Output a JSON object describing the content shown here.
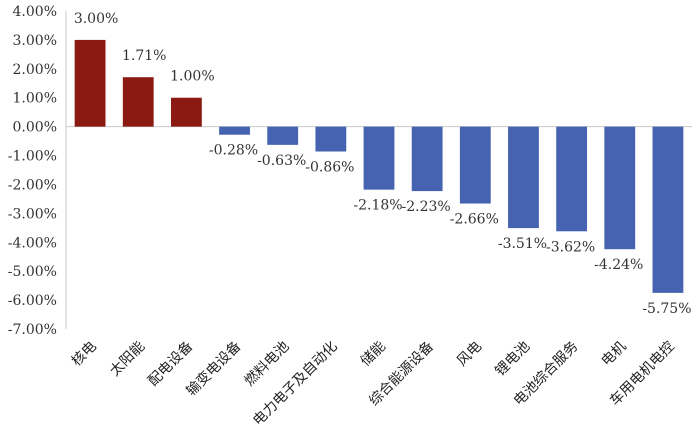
{
  "chart_data": {
    "type": "bar",
    "title": "",
    "xlabel": "",
    "ylabel": "",
    "ylim": [
      -7.0,
      4.0
    ],
    "y_tick_step": 1.0,
    "y_tick_labels": [
      "4.00%",
      "3.00%",
      "2.00%",
      "1.00%",
      "0.00%",
      "-1.00%",
      "-2.00%",
      "-3.00%",
      "-4.00%",
      "-5.00%",
      "-6.00%",
      "-7.00%"
    ],
    "grid": false,
    "legend": "none",
    "colors": {
      "positive": "#8B1A12",
      "negative": "#4563B1",
      "axis": "#C8C8C8"
    },
    "categories": [
      "核电",
      "太阳能",
      "配电设备",
      "输变电设备",
      "燃料电池",
      "电力电子及自动化",
      "储能",
      "综合能源设备",
      "风电",
      "锂电池",
      "电池综合服务",
      "电机",
      "车用电机电控"
    ],
    "values": [
      3.0,
      1.71,
      1.0,
      -0.28,
      -0.63,
      -0.86,
      -2.18,
      -2.23,
      -2.66,
      -3.51,
      -3.62,
      -4.24,
      -5.75
    ],
    "data_labels": [
      "3.00%",
      "1.71%",
      "1.00%",
      "-0.28%",
      "-0.63%",
      "-0.86%",
      "-2.18%",
      "-2.23%",
      "-2.66%",
      "-3.51%",
      "-3.62%",
      "-4.24%",
      "-5.75%"
    ]
  }
}
